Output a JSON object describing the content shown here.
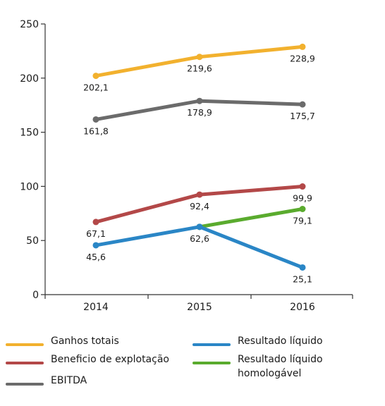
{
  "chart_data": {
    "type": "line",
    "title": "",
    "xlabel": "",
    "ylabel": "",
    "categories": [
      "2014",
      "2015",
      "2016"
    ],
    "ylim": [
      0,
      250
    ],
    "yticks": [
      "0",
      "50",
      "100",
      "150",
      "200",
      "250"
    ],
    "grid": false,
    "legend_position": "bottom",
    "series": [
      {
        "name": "Ganhos totais",
        "color": "#f2b12e",
        "values": [
          202.1,
          219.6,
          228.9
        ],
        "labels": [
          "202,1",
          "219,6",
          "228,9"
        ],
        "label_placement": "below"
      },
      {
        "name": "EBITDA",
        "color": "#6b6b6b",
        "values": [
          161.8,
          178.9,
          175.7
        ],
        "labels": [
          "161,8",
          "178,9",
          "175,7"
        ],
        "label_placement": "below"
      },
      {
        "name": "Beneficio de explotação",
        "color": "#b34848",
        "values": [
          67.1,
          92.4,
          99.9
        ],
        "labels": [
          "67,1",
          "92,4",
          "99,9"
        ],
        "label_placement": "below"
      },
      {
        "name": "Resultado líquido homologável",
        "color": "#5aab2e",
        "values": [
          null,
          62.6,
          79.1
        ],
        "labels": [
          "",
          "",
          "79,1"
        ],
        "label_placement": "below"
      },
      {
        "name": "Resultado líquido",
        "color": "#2a86c6",
        "values": [
          45.6,
          62.6,
          25.1
        ],
        "labels": [
          "45,6",
          "62,6",
          "25,1"
        ],
        "label_placement": "below"
      }
    ]
  },
  "legend": {
    "items": [
      {
        "label": "Ganhos totais",
        "color": "#f2b12e"
      },
      {
        "label": "Beneficio de explotação",
        "color": "#b34848"
      },
      {
        "label": "EBITDA",
        "color": "#6b6b6b"
      },
      {
        "label": "Resultado líquido",
        "color": "#2a86c6"
      },
      {
        "label": "Resultado líquido homologável",
        "color": "#5aab2e"
      }
    ]
  }
}
